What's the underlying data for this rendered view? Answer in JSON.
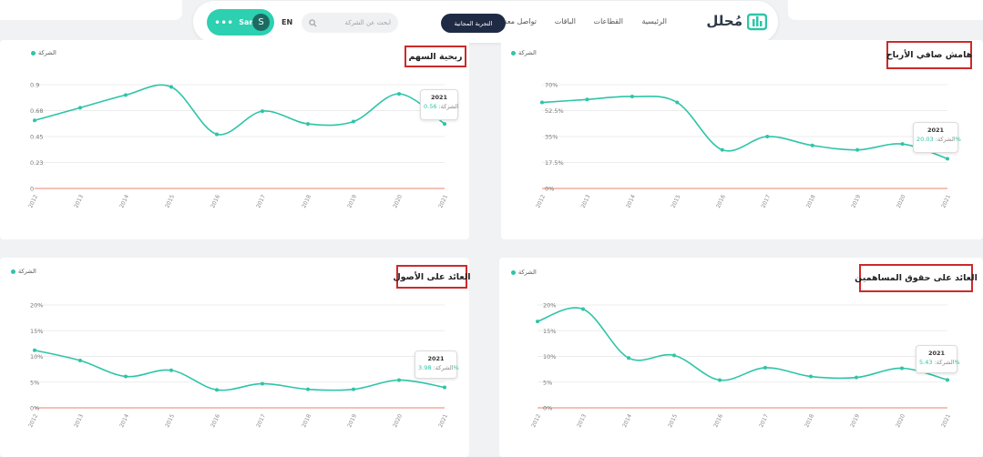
{
  "nav": {
    "logo_text": "مُحلل",
    "links": [
      "الرئيسية",
      "القطاعات",
      "الباقات",
      "تواصل معنا"
    ],
    "trial_label": "التجربة المجانية",
    "search_placeholder": "ابحث عن الشركة",
    "lang": "EN",
    "user_name": "Sam 7",
    "user_initial": "S"
  },
  "colors": {
    "accent": "#2ec4a8",
    "baseline": "#e8836f",
    "highlight_border": "#cc2a2a",
    "dark": "#1f2a44"
  },
  "years": [
    "2012",
    "2013",
    "2014",
    "2015",
    "2016",
    "2017",
    "2018",
    "2019",
    "2020",
    "2021"
  ],
  "legend_label": "الشركة",
  "charts": [
    {
      "id": "eps",
      "title": "ربحية السهم",
      "y_ticks": [
        "0.9",
        "0.68",
        "0.45",
        "0.23",
        "0"
      ],
      "tooltip": {
        "year": "2021",
        "label": "الشركة:",
        "value": "0.56"
      }
    },
    {
      "id": "net_margin",
      "title": "هامش صافي الأرباح",
      "y_ticks": [
        "70%",
        "52.5%",
        "35%",
        "17.5%",
        "0%"
      ],
      "tooltip": {
        "year": "2021",
        "label": "الشركة:",
        "value": "20.03%"
      }
    },
    {
      "id": "roa",
      "title": "العائد على الأصول",
      "y_ticks": [
        "20%",
        "15%",
        "10%",
        "5%",
        "0%"
      ],
      "tooltip": {
        "year": "2021",
        "label": "الشركة:",
        "value": "3.98%"
      }
    },
    {
      "id": "roe",
      "title": "العائد على حقوق المساهمين",
      "y_ticks": [
        "20%",
        "15%",
        "10%",
        "5%",
        "0%"
      ],
      "tooltip": {
        "year": "2021",
        "label": "الشركة:",
        "value": "5.43%"
      }
    }
  ],
  "chart_data": [
    {
      "type": "line",
      "title": "ربحية السهم",
      "x": [
        "2012",
        "2013",
        "2014",
        "2015",
        "2016",
        "2017",
        "2018",
        "2019",
        "2020",
        "2021"
      ],
      "series": [
        {
          "name": "الشركة",
          "values": [
            0.59,
            0.7,
            0.81,
            0.88,
            0.47,
            0.67,
            0.56,
            0.58,
            0.82,
            0.56
          ]
        }
      ],
      "ylim": [
        0,
        0.9
      ]
    },
    {
      "type": "line",
      "title": "هامش صافي الأرباح",
      "x": [
        "2012",
        "2013",
        "2014",
        "2015",
        "2016",
        "2017",
        "2018",
        "2019",
        "2020",
        "2021"
      ],
      "series": [
        {
          "name": "الشركة",
          "values": [
            58,
            60,
            62,
            58,
            26,
            35,
            29,
            26,
            30,
            20.03
          ]
        }
      ],
      "ylim": [
        0,
        70
      ]
    },
    {
      "type": "line",
      "title": "العائد على الأصول",
      "x": [
        "2012",
        "2013",
        "2014",
        "2015",
        "2016",
        "2017",
        "2018",
        "2019",
        "2020",
        "2021"
      ],
      "series": [
        {
          "name": "الشركة",
          "values": [
            11.2,
            9.2,
            6.1,
            7.3,
            3.5,
            4.7,
            3.6,
            3.6,
            5.4,
            3.98
          ]
        }
      ],
      "ylim": [
        0,
        20
      ]
    },
    {
      "type": "line",
      "title": "العائد على حقوق المساهمين",
      "x": [
        "2012",
        "2013",
        "2014",
        "2015",
        "2016",
        "2017",
        "2018",
        "2019",
        "2020",
        "2021"
      ],
      "series": [
        {
          "name": "الشركة",
          "values": [
            16.8,
            19.2,
            9.7,
            10.2,
            5.4,
            7.8,
            6.1,
            5.9,
            7.7,
            5.43
          ]
        }
      ],
      "ylim": [
        0,
        20
      ]
    }
  ]
}
